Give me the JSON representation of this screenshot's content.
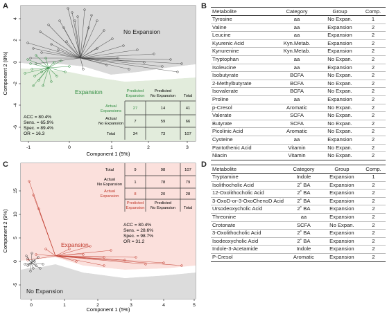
{
  "panel_labels": {
    "a": "A",
    "b": "B",
    "c": "C",
    "d": "D"
  },
  "panel_a": {
    "region_top_label": "No Expansion",
    "region_bottom_label": "Expansion",
    "xlabel": "Component 1 (5%)",
    "ylabel": "Component 2 (8%)",
    "xticks": [
      "-1",
      "0",
      "1",
      "2",
      "3"
    ],
    "yticks": [
      "-6",
      "-4",
      "-2",
      "0",
      "2",
      "4"
    ],
    "stats": [
      "ACC = 80.4%",
      "Sens. = 65.9%",
      "Spec. = 89.4%",
      "OR = 16.3"
    ],
    "confusion": {
      "col_headers": [
        "Predicted Expansion",
        "Predicted No Expansion",
        "Total"
      ],
      "row_headers": [
        "Actual Expansions",
        "Actual No Expansion",
        "Total"
      ],
      "cells": [
        [
          "27",
          "14",
          "41"
        ],
        [
          "7",
          "59",
          "66"
        ],
        [
          "34",
          "73",
          "107"
        ]
      ]
    },
    "colors": {
      "expansion": "#2e8b3e",
      "no_expansion": "#444444"
    }
  },
  "panel_c": {
    "region_top_label": "Expansion",
    "region_bottom_label": "No Expansion",
    "xlabel": "Component 1 (5%)",
    "ylabel": "Component 2 (9%)",
    "xticks": [
      "0",
      "1",
      "2",
      "3",
      "4",
      "5"
    ],
    "yticks": [
      "-5",
      "0",
      "5",
      "10",
      "15"
    ],
    "stats": [
      "ACC = 80.4%",
      "Sens. = 28.6%",
      "Spec. = 98.7%",
      "OR = 31.2"
    ],
    "confusion": {
      "row_headers": [
        "Total",
        "Actual No Expansion",
        "Actual Expansion"
      ],
      "col_headers": [
        "Predicted Expansion",
        "Predicted No Expansion",
        "Total"
      ],
      "cells": [
        [
          "9",
          "98",
          "107"
        ],
        [
          "1",
          "78",
          "79"
        ],
        [
          "8",
          "20",
          "28"
        ]
      ]
    },
    "colors": {
      "expansion": "#c0392b",
      "no_expansion": "#444444"
    }
  },
  "table_b": {
    "headers": [
      "Metabolite",
      "Category",
      "Group",
      "Comp."
    ],
    "rows": [
      [
        "Tyrosine",
        "aa",
        "No Expan.",
        "1"
      ],
      [
        "Valine",
        "aa",
        "Expansion",
        "2"
      ],
      [
        "Leucine",
        "aa",
        "Expansion",
        "2"
      ],
      [
        "Kyurenic Acid",
        "Kyn.Metab.",
        "Expansion",
        "2"
      ],
      [
        "Kynurenine",
        "Kyn.Metab.",
        "Expansion",
        "2"
      ],
      [
        "Tryptophan",
        "aa",
        "No Expan.",
        "2"
      ],
      [
        "Isoleucine",
        "aa",
        "Expansion",
        "2"
      ],
      [
        "Isobutyrate",
        "BCFA",
        "No Expan.",
        "2"
      ],
      [
        "2-Methylbutyrate",
        "BCFA",
        "No Expan.",
        "2"
      ],
      [
        "Isovalerate",
        "BCFA",
        "No Expan.",
        "2"
      ],
      [
        "Proline",
        "aa",
        "Expansion",
        "2"
      ],
      [
        "p-Cresol",
        "Aromatic",
        "No Expan.",
        "2"
      ],
      [
        "Valerate",
        "SCFA",
        "No Expan.",
        "2"
      ],
      [
        "Butyrate",
        "SCFA",
        "No Expan.",
        "2"
      ],
      [
        "Picolinic Acid",
        "Aromatic",
        "No Expan.",
        "2"
      ],
      [
        "Cysteine",
        "aa",
        "Expansion",
        "2"
      ],
      [
        "Pantothenic Acid",
        "Vitamin",
        "No Expan.",
        "2"
      ],
      [
        "Niacin",
        "Vitamin",
        "No Expan.",
        "2"
      ]
    ]
  },
  "table_d": {
    "headers": [
      "Metabolite",
      "Category",
      "Group",
      "Comp."
    ],
    "rows": [
      [
        "Tryptamine",
        "Indole",
        "Expansion",
        "1"
      ],
      [
        "Isolithocholic Acid",
        "2˚ BA",
        "Expansion",
        "2"
      ],
      [
        "12-Oxolithocholic Acid",
        "2˚ BA",
        "Expansion",
        "2"
      ],
      [
        "3-OxoD-or-3-OxoChenoD Acid",
        "2˚ BA",
        "Expansion",
        "2"
      ],
      [
        "Ursodeoxycholic Acid",
        "2˚ BA",
        "Expansion",
        "2"
      ],
      [
        "Threonine",
        "aa",
        "Expansion",
        "2"
      ],
      [
        "Crotonate",
        "SCFA",
        "No Expan.",
        "2"
      ],
      [
        "3-Oxolithocholic Acid",
        "2˚ BA",
        "Expansion",
        "2"
      ],
      [
        "Isodeoxycholic Acid",
        "2˚ BA",
        "Expansion",
        "2"
      ],
      [
        "Indole-3-Acetamide",
        "Indole",
        "Expansion",
        "2"
      ],
      [
        "P-Cresol",
        "Aromatic",
        "Expansion",
        "2"
      ]
    ]
  }
}
